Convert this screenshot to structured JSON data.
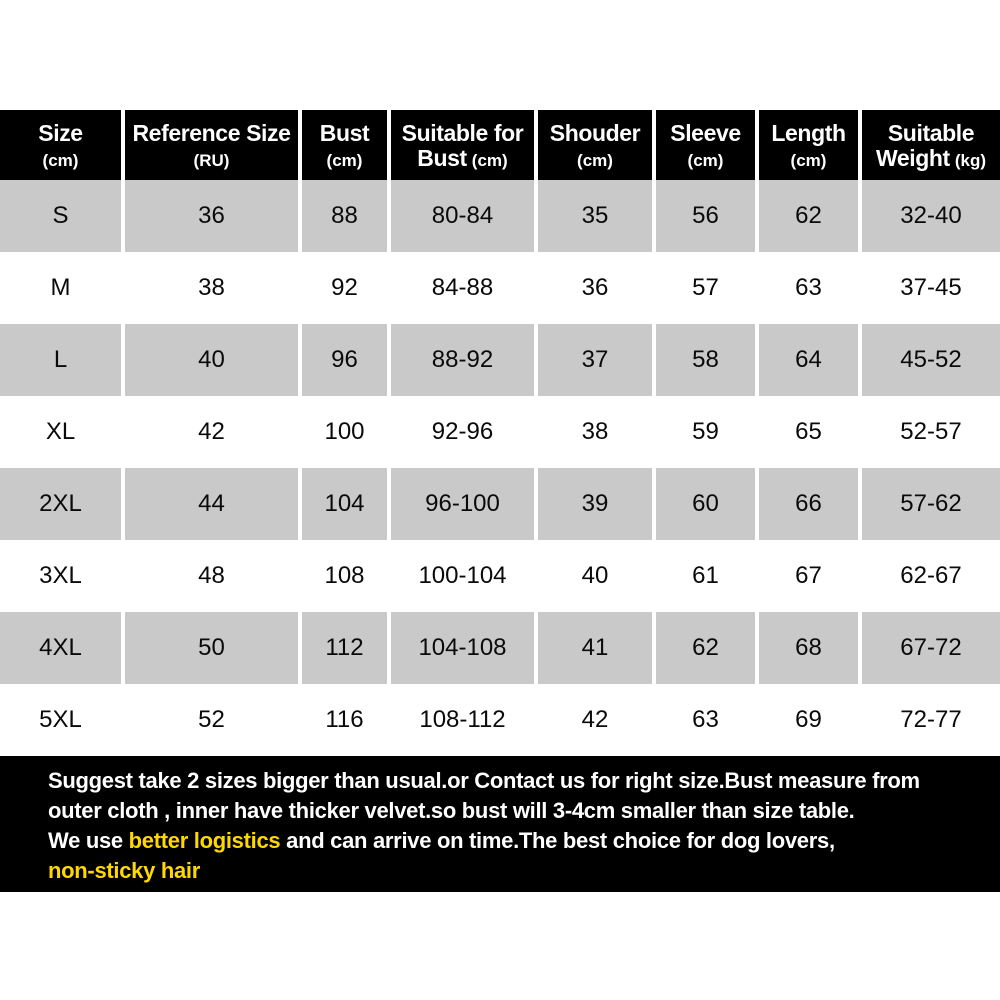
{
  "colors": {
    "header_bg": "#000000",
    "header_text": "#ffffff",
    "row_bg": "#ffffff",
    "row_alt_bg": "#c9c9c9",
    "cell_text": "#0a0a0a",
    "footer_bg": "#000000",
    "footer_text": "#ffffff",
    "highlight": "#ffd800"
  },
  "table": {
    "headers": [
      {
        "line1": "Size",
        "line2_main": "",
        "line2_small": "(cm)"
      },
      {
        "line1": "Reference Size",
        "line2_main": "",
        "line2_small": "(RU)"
      },
      {
        "line1": "Bust",
        "line2_main": "",
        "line2_small": "(cm)"
      },
      {
        "line1": "Suitable for",
        "line2_main": "Bust",
        "line2_small": "(cm)"
      },
      {
        "line1": "Shouder",
        "line2_main": "",
        "line2_small": "(cm)"
      },
      {
        "line1": "Sleeve",
        "line2_main": "",
        "line2_small": "(cm)"
      },
      {
        "line1": "Length",
        "line2_main": "",
        "line2_small": "(cm)"
      },
      {
        "line1": "Suitable",
        "line2_main": "Weight",
        "line2_small": "(kg)"
      }
    ],
    "rows": [
      {
        "cells": [
          "S",
          "36",
          "88",
          "80-84",
          "35",
          "56",
          "62",
          "32-40"
        ]
      },
      {
        "cells": [
          "M",
          "38",
          "92",
          "84-88",
          "36",
          "57",
          "63",
          "37-45"
        ]
      },
      {
        "cells": [
          "L",
          "40",
          "96",
          "88-92",
          "37",
          "58",
          "64",
          "45-52"
        ]
      },
      {
        "cells": [
          "XL",
          "42",
          "100",
          "92-96",
          "38",
          "59",
          "65",
          "52-57"
        ]
      },
      {
        "cells": [
          "2XL",
          "44",
          "104",
          "96-100",
          "39",
          "60",
          "66",
          "57-62"
        ]
      },
      {
        "cells": [
          "3XL",
          "48",
          "108",
          "100-104",
          "40",
          "61",
          "67",
          "62-67"
        ]
      },
      {
        "cells": [
          "4XL",
          "50",
          "112",
          "104-108",
          "41",
          "62",
          "68",
          "67-72"
        ]
      },
      {
        "cells": [
          "5XL",
          "52",
          "116",
          "108-112",
          "42",
          "63",
          "69",
          "72-77"
        ]
      }
    ]
  },
  "footer": {
    "line1": "Suggest take 2 sizes bigger than usual.or Contact us for right size.Bust measure from",
    "line2": "outer cloth , inner have thicker velvet.so bust will 3-4cm smaller than size table.",
    "line3_pre": "We use ",
    "line3_highlight": "better logistics",
    "line3_post": " and can arrive on time.The best choice for dog lovers,",
    "line4_highlight": "non-sticky hair"
  }
}
